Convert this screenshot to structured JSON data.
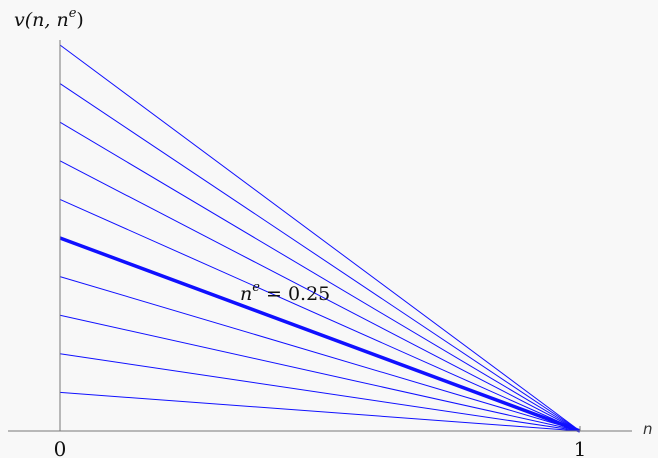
{
  "chart_data": {
    "type": "line",
    "ylabel": "v(n, n^e)",
    "xlabel": "n",
    "xlim": [
      0,
      1
    ],
    "ylim": [
      0,
      1
    ],
    "x_ticks": [
      "0",
      "1"
    ],
    "grid": false,
    "line_color": "#1010ff",
    "series": [
      {
        "x": [
          0,
          1
        ],
        "y": [
          1.0,
          0
        ]
      },
      {
        "x": [
          0,
          1
        ],
        "y": [
          0.9,
          0
        ]
      },
      {
        "x": [
          0,
          1
        ],
        "y": [
          0.8,
          0
        ]
      },
      {
        "x": [
          0,
          1
        ],
        "y": [
          0.7,
          0
        ]
      },
      {
        "x": [
          0,
          1
        ],
        "y": [
          0.6,
          0
        ]
      },
      {
        "x": [
          0,
          1
        ],
        "y": [
          0.5,
          0
        ],
        "highlight": true,
        "name": "n^e = 0.25"
      },
      {
        "x": [
          0,
          1
        ],
        "y": [
          0.4,
          0
        ]
      },
      {
        "x": [
          0,
          1
        ],
        "y": [
          0.3,
          0
        ]
      },
      {
        "x": [
          0,
          1
        ],
        "y": [
          0.2,
          0
        ]
      },
      {
        "x": [
          0,
          1
        ],
        "y": [
          0.1,
          0
        ]
      }
    ],
    "annotation": {
      "base": "n",
      "sup": "e",
      "rest": " = 0.25"
    }
  }
}
